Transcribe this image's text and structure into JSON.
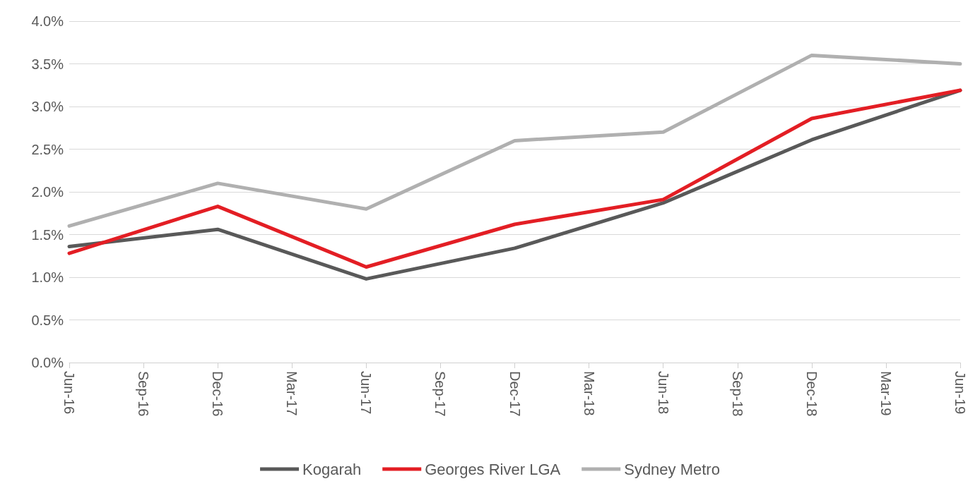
{
  "chart_data": {
    "type": "line",
    "categories": [
      "Jun-16",
      "Sep-16",
      "Dec-16",
      "Mar-17",
      "Jun-17",
      "Sep-17",
      "Dec-17",
      "Mar-18",
      "Jun-18",
      "Sep-18",
      "Dec-18",
      "Mar-19",
      "Jun-19"
    ],
    "series": [
      {
        "name": "Kogarah",
        "color": "#595959",
        "values": [
          1.36,
          null,
          1.56,
          null,
          0.98,
          null,
          1.34,
          null,
          1.87,
          null,
          2.61,
          null,
          3.19
        ]
      },
      {
        "name": "Georges River LGA",
        "color": "#e31e24",
        "values": [
          1.28,
          null,
          1.83,
          null,
          1.12,
          null,
          1.62,
          null,
          1.91,
          null,
          2.86,
          null,
          3.19
        ]
      },
      {
        "name": "Sydney Metro",
        "color": "#b0b0b0",
        "values": [
          1.6,
          null,
          2.1,
          null,
          1.8,
          null,
          2.6,
          null,
          2.7,
          null,
          3.6,
          null,
          3.5
        ]
      }
    ],
    "ylim": [
      0,
      4
    ],
    "yticks": [
      {
        "value": 0,
        "label": "0.0%"
      },
      {
        "value": 0.5,
        "label": "0.5%"
      },
      {
        "value": 1,
        "label": "1.0%"
      },
      {
        "value": 1.5,
        "label": "1.5%"
      },
      {
        "value": 2,
        "label": "2.0%"
      },
      {
        "value": 2.5,
        "label": "2.5%"
      },
      {
        "value": 3,
        "label": "3.0%"
      },
      {
        "value": 3.5,
        "label": "3.5%"
      },
      {
        "value": 4,
        "label": "4.0%"
      }
    ],
    "grid": "y",
    "legend": "bottom",
    "marker": "none",
    "line_style": "solid"
  }
}
